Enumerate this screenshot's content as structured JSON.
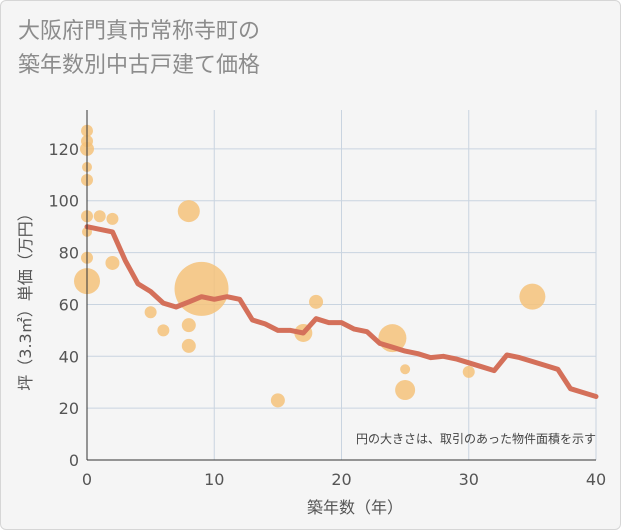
{
  "header": {
    "title_line1": "大阪府門真市常称寺町の",
    "title_line2": "築年数別中古戸建て価格"
  },
  "chart_data": {
    "type": "scatter",
    "title": "大阪府門真市常称寺町の築年数別中古戸建て価格",
    "xlabel": "築年数（年）",
    "ylabel": "坪（3.3㎡）単価（万円）",
    "note": "円の大きさは、取引のあった物件面積を示す",
    "xlim": [
      0,
      40
    ],
    "ylim": [
      0,
      135
    ],
    "xticks": [
      0,
      10,
      20,
      30,
      40
    ],
    "yticks": [
      0,
      20,
      40,
      60,
      80,
      100,
      120
    ],
    "grid": true,
    "colors": {
      "bubble": "#f5c27a",
      "line": "#d4705a"
    },
    "bubbles": [
      {
        "x": 0,
        "y": 127,
        "r": 6
      },
      {
        "x": 0,
        "y": 123,
        "r": 6
      },
      {
        "x": 0,
        "y": 120,
        "r": 7
      },
      {
        "x": 0,
        "y": 113,
        "r": 5
      },
      {
        "x": 0,
        "y": 108,
        "r": 6
      },
      {
        "x": 0,
        "y": 94,
        "r": 6
      },
      {
        "x": 0,
        "y": 88,
        "r": 5
      },
      {
        "x": 0,
        "y": 78,
        "r": 6
      },
      {
        "x": 0,
        "y": 69,
        "r": 13
      },
      {
        "x": 1,
        "y": 94,
        "r": 6
      },
      {
        "x": 2,
        "y": 93,
        "r": 6
      },
      {
        "x": 2,
        "y": 76,
        "r": 7
      },
      {
        "x": 5,
        "y": 57,
        "r": 6
      },
      {
        "x": 6,
        "y": 50,
        "r": 6
      },
      {
        "x": 8,
        "y": 96,
        "r": 11
      },
      {
        "x": 8,
        "y": 52,
        "r": 7
      },
      {
        "x": 8,
        "y": 44,
        "r": 7
      },
      {
        "x": 9,
        "y": 66,
        "r": 27
      },
      {
        "x": 15,
        "y": 23,
        "r": 7
      },
      {
        "x": 17,
        "y": 49,
        "r": 9
      },
      {
        "x": 18,
        "y": 61,
        "r": 7
      },
      {
        "x": 24,
        "y": 47,
        "r": 14
      },
      {
        "x": 25,
        "y": 35,
        "r": 5
      },
      {
        "x": 25,
        "y": 27,
        "r": 10
      },
      {
        "x": 30,
        "y": 34,
        "r": 6
      },
      {
        "x": 35,
        "y": 63,
        "r": 13
      }
    ],
    "line": {
      "x": [
        0,
        1,
        2,
        3,
        4,
        5,
        6,
        7,
        8,
        9,
        10,
        11,
        12,
        13,
        14,
        15,
        16,
        17,
        18,
        19,
        20,
        21,
        22,
        23,
        24,
        25,
        26,
        27,
        28,
        29,
        30,
        31,
        32,
        33,
        34,
        35,
        36,
        37,
        38,
        39,
        40
      ],
      "y": [
        90,
        89,
        88,
        77,
        68,
        65,
        60.5,
        59,
        61,
        63,
        62,
        63,
        62,
        54,
        52.5,
        50,
        50,
        49,
        54.5,
        53,
        53,
        50.5,
        49.5,
        45,
        43.5,
        42,
        41,
        39.5,
        40,
        39,
        37.5,
        36,
        34.5,
        40.5,
        39.5,
        38,
        36.5,
        35,
        27.5,
        26,
        24.5
      ]
    }
  }
}
